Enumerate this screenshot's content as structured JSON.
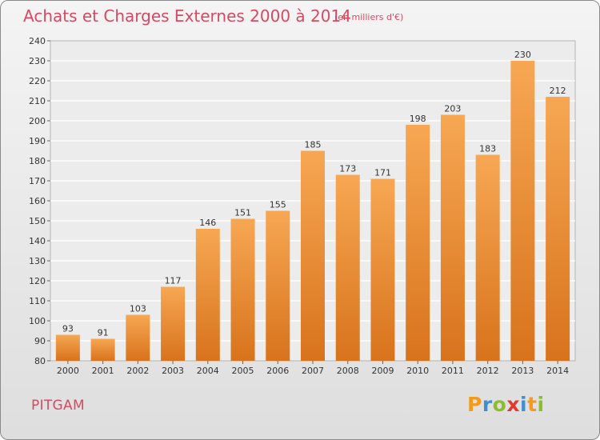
{
  "title": "Achats et Charges Externes 2000 à 2014",
  "subtitle": "(en milliers d'€)",
  "commune": "PITGAM",
  "logo": {
    "letters": [
      "P",
      "r",
      "o",
      "x",
      "i",
      "t",
      "i"
    ],
    "colors": [
      "#f39a1f",
      "#3f8fd1",
      "#8cbd2a",
      "#e23a2c",
      "#3f8fd1",
      "#f39a1f",
      "#8cbd2a"
    ]
  },
  "colors": {
    "title": "#d54a63",
    "bar_light": "#f7a753",
    "bar_dark": "#d8731c"
  },
  "chart_data": {
    "type": "bar",
    "title": "Achats et Charges Externes 2000 à 2014",
    "categories": [
      "2000",
      "2001",
      "2002",
      "2003",
      "2004",
      "2005",
      "2006",
      "2007",
      "2008",
      "2009",
      "2010",
      "2011",
      "2012",
      "2013",
      "2014"
    ],
    "values": [
      93,
      91,
      103,
      117,
      146,
      151,
      155,
      185,
      173,
      171,
      198,
      203,
      183,
      230,
      212
    ],
    "ylim": [
      80,
      240
    ],
    "yticks": [
      80,
      90,
      100,
      110,
      120,
      130,
      140,
      150,
      160,
      170,
      180,
      190,
      200,
      210,
      220,
      230,
      240
    ],
    "grid": true
  }
}
